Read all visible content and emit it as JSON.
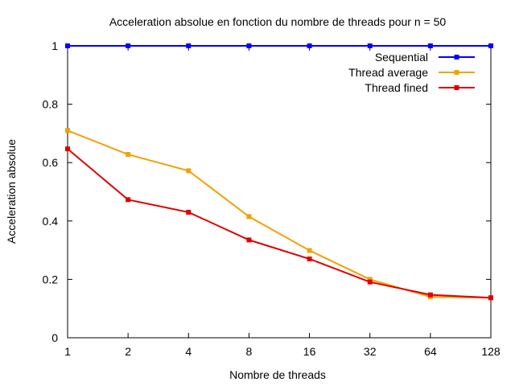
{
  "chart_data": {
    "type": "line",
    "title": "Acceleration absolue en fonction du nombre de threads pour n = 50",
    "xlabel": "Nombre de threads",
    "ylabel": "Acceleration absolue",
    "x": [
      1,
      2,
      4,
      8,
      16,
      32,
      64,
      128
    ],
    "x_tick_labels": [
      "1",
      "2",
      "4",
      "8",
      "16",
      "32",
      "64",
      "128"
    ],
    "x_scale": "log2",
    "y_ticks": [
      0,
      0.2,
      0.4,
      0.6,
      0.8,
      1
    ],
    "y_tick_labels": [
      "0",
      "0.2",
      "0.4",
      "0.6",
      "0.8",
      "1"
    ],
    "ylim": [
      0,
      1
    ],
    "grid": false,
    "legend_position": "top-right",
    "series": [
      {
        "name": "Sequential",
        "color": "#0000ff",
        "values": [
          1,
          1,
          1,
          1,
          1,
          1,
          1,
          1
        ]
      },
      {
        "name": "Thread average",
        "color": "#f5a000",
        "values": [
          0.71,
          0.628,
          0.572,
          0.415,
          0.299,
          0.2,
          0.14,
          0.137
        ]
      },
      {
        "name": "Thread fined",
        "color": "#e00000",
        "values": [
          0.647,
          0.473,
          0.43,
          0.335,
          0.27,
          0.191,
          0.147,
          0.137
        ]
      }
    ]
  }
}
